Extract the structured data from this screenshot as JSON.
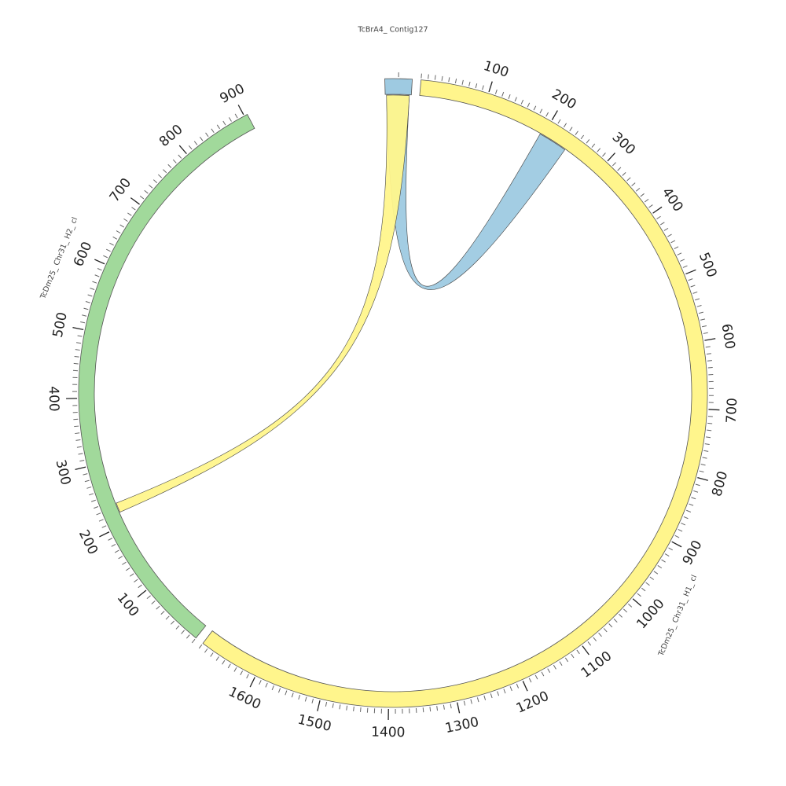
{
  "sequences": [
    {
      "id": "contig127",
      "label": "TcBrA4_ Contig127",
      "length": 40,
      "color": "#9ecae1",
      "label_step": 0,
      "tick_step": 0
    },
    {
      "id": "h1",
      "label": "TcDm25_ Chr31_ H1_ cl",
      "length": 1690,
      "color": "#fff58c",
      "label_step": 100,
      "tick_step": 10
    },
    {
      "id": "h2",
      "label": "TcDm25_ Chr31_ H2_ cl",
      "length": 905,
      "color": "#a1d99b",
      "label_step": 100,
      "tick_step": 10
    }
  ],
  "links": [
    {
      "source": "contig127",
      "source_range": [
        2,
        37
      ],
      "target": "h1",
      "target_range": [
        195,
        240
      ],
      "color": "#9ecae1"
    },
    {
      "source": "contig127",
      "source_range": [
        2,
        37
      ],
      "target": "h2",
      "target_range": [
        220,
        235
      ],
      "color": "#fff58c"
    }
  ]
}
